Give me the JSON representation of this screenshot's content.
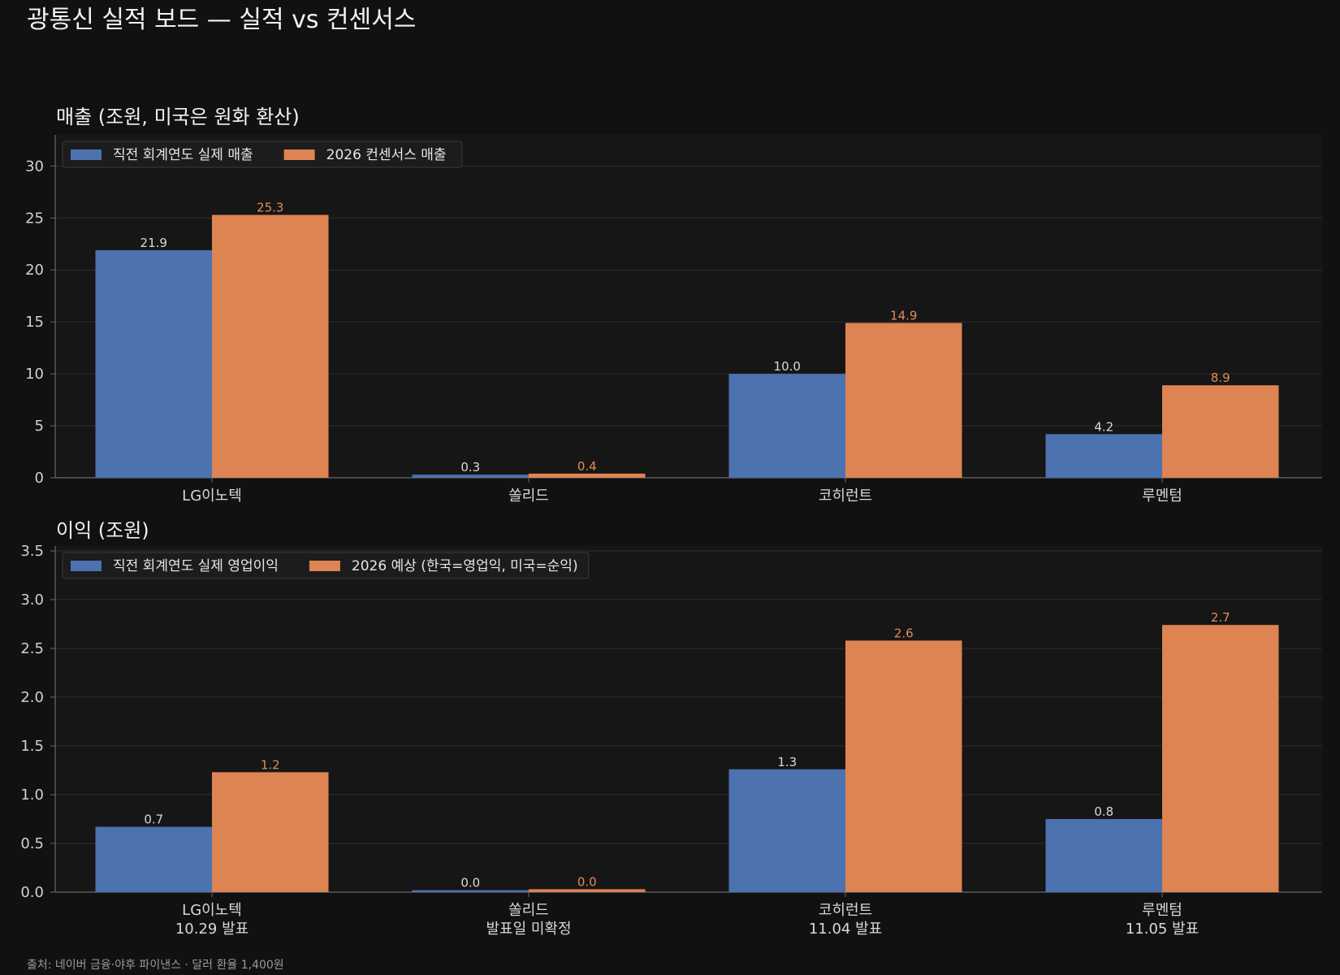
{
  "page_title": "광통신 실적 보드 — 실적 vs 컨센서스",
  "source_note": "출처: 네이버 금융·야후 파이낸스 · 달러 환율 1,400원",
  "colors": {
    "background": "#111111",
    "panel": "#161616",
    "actual": "#4c72b0",
    "consensus": "#dd8452",
    "actual_label": "#d9d9d9",
    "consensus_label": "#e08b5a",
    "grid": "#2e2e2e",
    "axis": "#6a6a6a"
  },
  "chart_data": [
    {
      "type": "bar",
      "title": "매출 (조원, 미국은 원화 환산)",
      "categories": [
        "LG이노텍",
        "쏠리드",
        "코히런트",
        "루멘텀"
      ],
      "series": [
        {
          "name": "직전 회계연도 실제 매출",
          "values": [
            21.9,
            0.3,
            10.0,
            4.2
          ]
        },
        {
          "name": "2026 컨센서스 매출",
          "values": [
            25.3,
            0.4,
            14.9,
            8.9
          ]
        }
      ],
      "value_labels": [
        [
          "21.9",
          "0.3",
          "10.0",
          "4.2"
        ],
        [
          "25.3",
          "0.4",
          "14.9",
          "8.9"
        ]
      ],
      "ylim": [
        0,
        33
      ],
      "yticks": [
        "0",
        "5",
        "10",
        "15",
        "20",
        "25",
        "30"
      ],
      "ytick_values": [
        0,
        5,
        10,
        15,
        20,
        25,
        30
      ],
      "grid": true,
      "legend_position": "top-left"
    },
    {
      "type": "bar",
      "title": "이익 (조원)",
      "categories": [
        "LG이노텍",
        "쏠리드",
        "코히런트",
        "루멘텀"
      ],
      "category_sublabels": [
        "10.29 발표",
        "발표일 미확정",
        "11.04 발표",
        "11.05 발표"
      ],
      "series": [
        {
          "name": "직전 회계연도 실제 영업이익",
          "values": [
            0.67,
            0.02,
            1.26,
            0.75
          ]
        },
        {
          "name": "2026 예상 (한국=영업익, 미국=순익)",
          "values": [
            1.23,
            0.03,
            2.58,
            2.74
          ]
        }
      ],
      "value_labels": [
        [
          "0.7",
          "0.0",
          "1.3",
          "0.8"
        ],
        [
          "1.2",
          "0.0",
          "2.6",
          "2.7"
        ]
      ],
      "ylim": [
        0,
        3.55
      ],
      "yticks": [
        "0.0",
        "0.5",
        "1.0",
        "1.5",
        "2.0",
        "2.5",
        "3.0",
        "3.5"
      ],
      "ytick_values": [
        0,
        0.5,
        1.0,
        1.5,
        2.0,
        2.5,
        3.0,
        3.5
      ],
      "grid": true,
      "legend_position": "top-left"
    }
  ]
}
